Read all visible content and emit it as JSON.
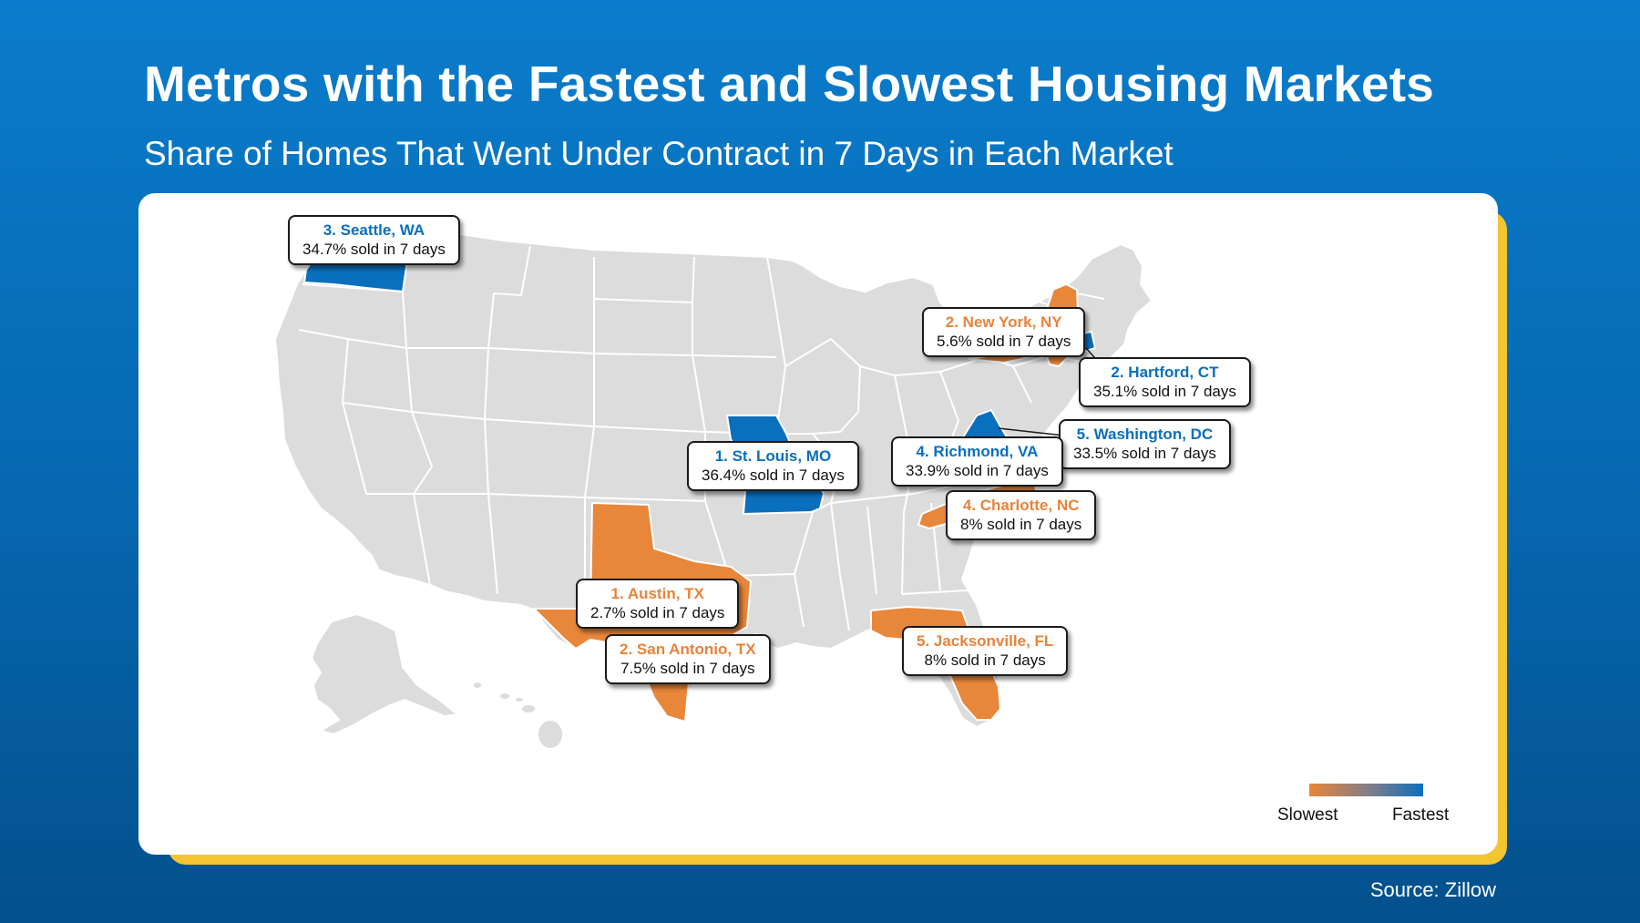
{
  "title": "Metros with the Fastest and Slowest Housing Markets",
  "subtitle": "Share of Homes That Went Under Contract in 7 Days in Each Market",
  "source": "Source: Zillow",
  "legend": {
    "slow_label": "Slowest",
    "fast_label": "Fastest",
    "slow_color": "#e8863a",
    "fast_color": "#0a6fbd"
  },
  "colors": {
    "land": "#dcdcdc",
    "border": "#ffffff",
    "fast": "#0a6fbd",
    "slow": "#e8863a"
  },
  "fastest": [
    {
      "city": "1. St. Louis, MO",
      "stat": "36.4% sold in 7 days",
      "share_pct": 36.4
    },
    {
      "city": "2. Hartford, CT",
      "stat": "35.1% sold in 7 days",
      "share_pct": 35.1
    },
    {
      "city": "3. Seattle, WA",
      "stat": "34.7% sold in 7 days",
      "share_pct": 34.7
    },
    {
      "city": "4. Richmond, VA",
      "stat": "33.9% sold in 7 days",
      "share_pct": 33.9
    },
    {
      "city": "5. Washington, DC",
      "stat": "33.5% sold in 7 days",
      "share_pct": 33.5
    }
  ],
  "slowest": [
    {
      "city": "1. Austin, TX",
      "stat": "2.7% sold in 7 days",
      "share_pct": 2.7
    },
    {
      "city": "2. San Antonio, TX",
      "stat": "7.5% sold in 7 days",
      "share_pct": 7.5
    },
    {
      "city": "2. New York, NY",
      "stat": "5.6% sold in 7 days",
      "share_pct": 5.6
    },
    {
      "city": "4. Charlotte, NC",
      "stat": "8% sold in 7 days",
      "share_pct": 8
    },
    {
      "city": "5. Jacksonville, FL",
      "stat": "8% sold in 7 days",
      "share_pct": 8
    }
  ]
}
